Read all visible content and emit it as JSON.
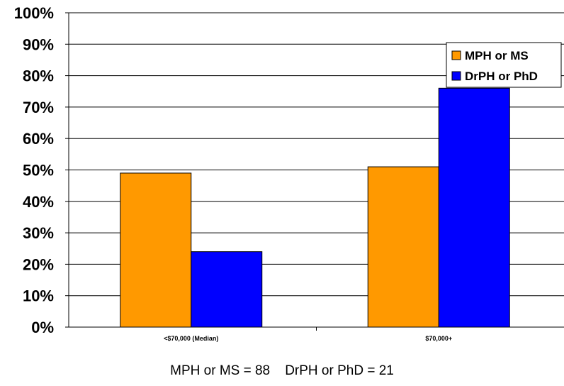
{
  "chart_data": {
    "type": "bar",
    "categories": [
      "<$70,000 (Median)",
      "$70,000+"
    ],
    "series": [
      {
        "name": "MPH or MS",
        "color": "#FF9900",
        "values": [
          49,
          51
        ]
      },
      {
        "name": "DrPH or PhD",
        "color": "#0000FF",
        "values": [
          24,
          76
        ]
      }
    ],
    "ylim": [
      0,
      100
    ],
    "yticks": [
      "0%",
      "10%",
      "20%",
      "30%",
      "40%",
      "50%",
      "60%",
      "70%",
      "80%",
      "90%",
      "100%"
    ],
    "grid": true,
    "legend_position": "top-right"
  },
  "footnote": "MPH or MS = 88    DrPH or PhD = 21"
}
